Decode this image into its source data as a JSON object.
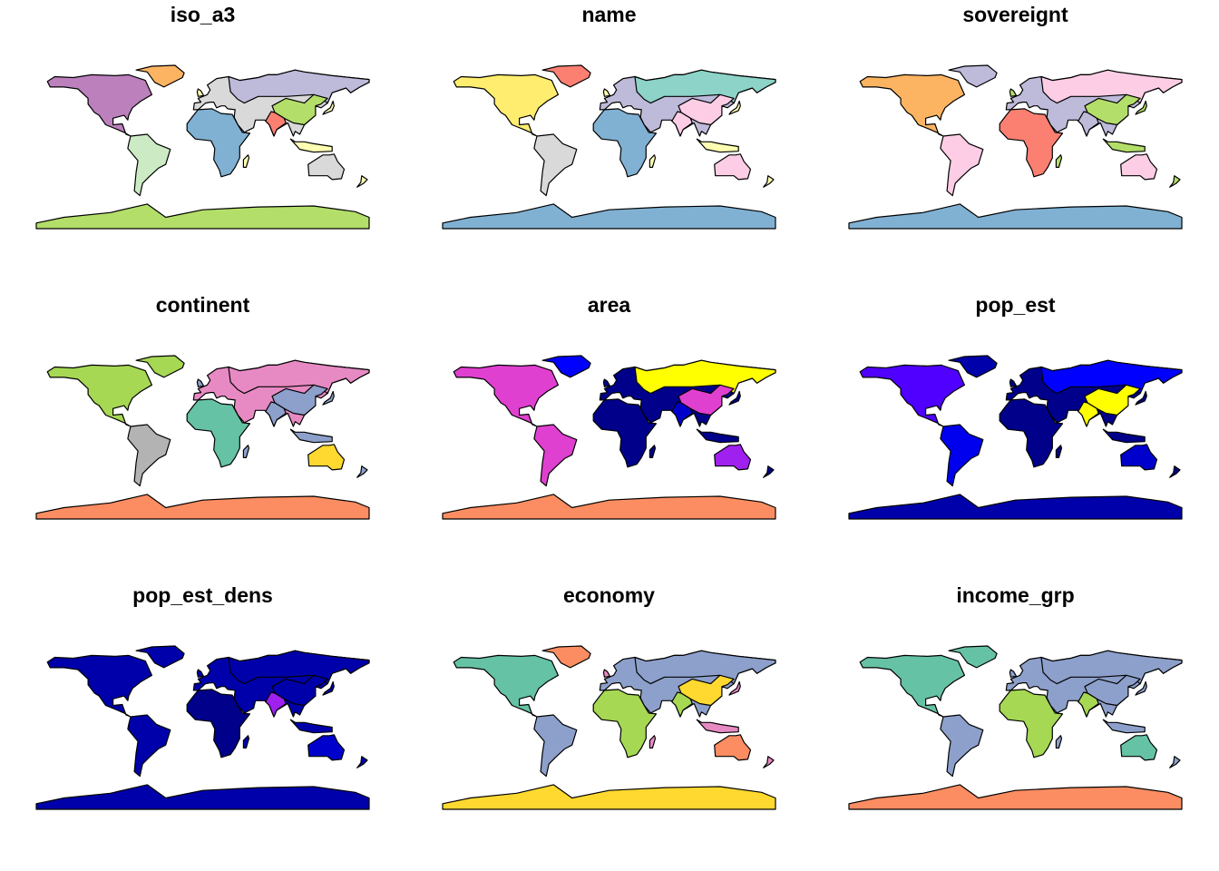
{
  "panels": [
    {
      "title": "iso_a3"
    },
    {
      "title": "name"
    },
    {
      "title": "sovereignt"
    },
    {
      "title": "continent"
    },
    {
      "title": "area"
    },
    {
      "title": "pop_est"
    },
    {
      "title": "pop_est_dens"
    },
    {
      "title": "economy"
    },
    {
      "title": "income_grp"
    }
  ]
}
